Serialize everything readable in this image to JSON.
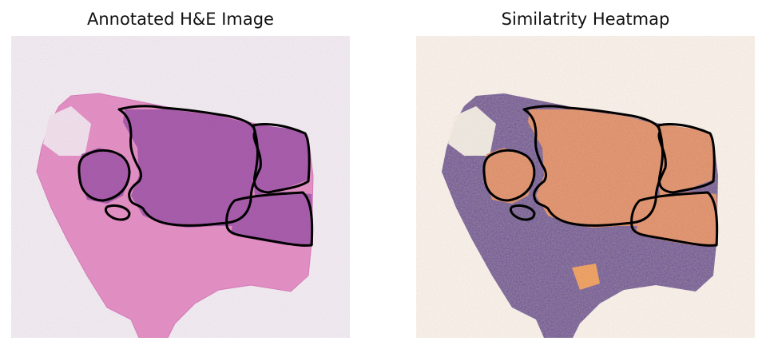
{
  "figure": {
    "left_title": "Annotated H&E Image",
    "right_title": "Similatrity Heatmap"
  },
  "colors": {
    "background": "#f4f4f4",
    "tissue_pink": "#e592c4",
    "tumor_purple": "#a45aa8",
    "annotation_outline": "#000000",
    "heat_low": "#5b3f8f",
    "heat_mid": "#7fc5a2",
    "heat_high": "#f08a4b",
    "heat_peak": "#d53e4f"
  }
}
